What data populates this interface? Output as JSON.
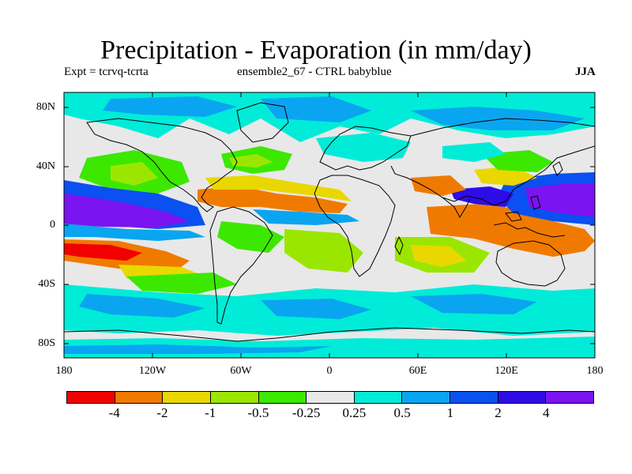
{
  "title": "Precipitation - Evaporation (in mm/day)",
  "subtitle_left": "Expt = tcrvq-tcrta",
  "subtitle_center": "ensemble2_67 - CTRL babyblue",
  "season": "JJA",
  "lat_labels": [
    "80N",
    "40N",
    "0",
    "40S",
    "80S"
  ],
  "lon_labels": [
    "180",
    "120W",
    "60W",
    "0",
    "60E",
    "120E",
    "180"
  ],
  "colorbar": {
    "colors": [
      "#f20000",
      "#f07a00",
      "#e9d800",
      "#9be600",
      "#3ce800",
      "#e8e8e8",
      "#00ecd8",
      "#0aa5f0",
      "#0b50f0",
      "#2e0ce8",
      "#7a14f0"
    ],
    "labels": [
      "-4",
      "-2",
      "-1",
      "-0.5",
      "-0.25",
      "0.25",
      "0.5",
      "1",
      "2",
      "4"
    ]
  },
  "map_data": {
    "lon_range": [
      -180,
      180
    ],
    "lat_range": [
      -90,
      90
    ],
    "background_color": "#e8e8e8"
  }
}
